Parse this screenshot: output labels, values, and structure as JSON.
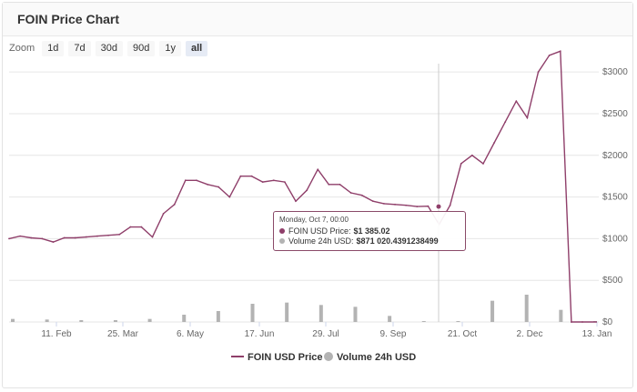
{
  "title": "FOIN Price Chart",
  "zoom": {
    "label": "Zoom",
    "buttons": [
      "1d",
      "7d",
      "30d",
      "90d",
      "1y",
      "all"
    ],
    "active": "all"
  },
  "colors": {
    "price": "#8f3f6a",
    "volume": "#b3b3b3",
    "grid": "#e6e6e6",
    "crosshair": "#cccccc"
  },
  "tooltip": {
    "date": "Monday, Oct 7, 00:00",
    "price_label": "FOIN USD Price:",
    "price_value": "$1 385.02",
    "volume_label": "Volume 24h USD:",
    "volume_value": "$871 020.4391238499"
  },
  "legend": {
    "price": "FOIN USD Price",
    "volume": "Volume 24h USD"
  },
  "chart_data": {
    "type": "line",
    "x_tick_labels": [
      "11. Feb",
      "25. Mar",
      "6. May",
      "17. Jun",
      "29. Jul",
      "9. Sep",
      "21. Oct",
      "2. Dec",
      "13. Jan"
    ],
    "y_tick_labels": [
      "$0",
      "$500",
      "$1000",
      "$1500",
      "$2000",
      "$2500",
      "$3000"
    ],
    "ylim": [
      0,
      3100
    ],
    "grid": true,
    "legend_position": "bottom",
    "series": [
      {
        "name": "FOIN USD Price",
        "type": "line",
        "x": [
          "Jan 20",
          "Jan 27",
          "Feb 3",
          "Feb 11",
          "Feb 18",
          "Feb 25",
          "Mar 4",
          "Mar 11",
          "Mar 18",
          "Mar 25",
          "Apr 1",
          "Apr 8",
          "Apr 15",
          "Apr 22",
          "Apr 29",
          "May 6",
          "May 13",
          "May 20",
          "May 27",
          "Jun 3",
          "Jun 10",
          "Jun 17",
          "Jun 24",
          "Jul 1",
          "Jul 8",
          "Jul 15",
          "Jul 22",
          "Jul 29",
          "Aug 5",
          "Aug 12",
          "Aug 19",
          "Aug 26",
          "Sep 2",
          "Sep 9",
          "Sep 16",
          "Sep 23",
          "Sep 30",
          "Oct 7",
          "Oct 14",
          "Oct 21",
          "Oct 28",
          "Nov 4",
          "Nov 11",
          "Nov 18",
          "Nov 25",
          "Dec 2",
          "Dec 9",
          "Dec 16",
          "Dec 23",
          "Dec 30",
          "Jan 6",
          "Jan 13",
          "Jan 20"
        ],
        "values": [
          1000,
          1030,
          1010,
          1000,
          960,
          1010,
          1010,
          1020,
          1030,
          1040,
          1050,
          1140,
          1140,
          1020,
          1300,
          1410,
          1700,
          1700,
          1650,
          1620,
          1500,
          1750,
          1750,
          1680,
          1700,
          1680,
          1450,
          1580,
          1830,
          1650,
          1650,
          1550,
          1520,
          1450,
          1420,
          1410,
          1400,
          1385,
          1390,
          1170,
          1400,
          1900,
          2000,
          1900,
          2150,
          2400,
          2650,
          2450,
          3000,
          3200,
          3250,
          0,
          0
        ]
      },
      {
        "name": "Volume 24h USD",
        "type": "column",
        "x": [
          "Jan 20",
          "Feb 11",
          "Mar 4",
          "Mar 25",
          "Apr 15",
          "May 6",
          "May 27",
          "Jun 17",
          "Jul 8",
          "Jul 29",
          "Aug 19",
          "Sep 9",
          "Sep 30",
          "Oct 21",
          "Nov 11",
          "Dec 2",
          "Dec 23",
          "Jan 13"
        ],
        "values": [
          5000000,
          4000000,
          3000000,
          3000000,
          5000000,
          12000000,
          18000000,
          30000000,
          32000000,
          28000000,
          25000000,
          10000000,
          800000,
          1000000,
          35000000,
          45000000,
          20000000,
          0
        ],
        "units": "USD"
      }
    ]
  }
}
